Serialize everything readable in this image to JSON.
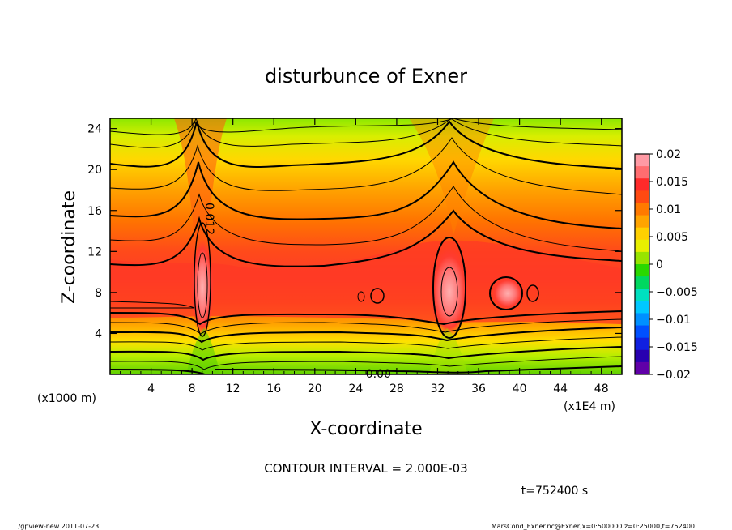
{
  "chart_data": {
    "type": "heatmap",
    "title": "disturbunce of Exner",
    "xlabel": "X-coordinate",
    "ylabel": "Z-coordinate",
    "x_unit_left": "(x1000 m)",
    "x_unit_right": "(x1E4 m)",
    "xlim": [
      0,
      50
    ],
    "ylim": [
      0,
      25
    ],
    "xticks": [
      4,
      8,
      12,
      16,
      20,
      24,
      28,
      32,
      36,
      40,
      44,
      48
    ],
    "yticks": [
      4,
      8,
      12,
      16,
      20,
      24
    ],
    "colorbar": {
      "levels": [
        0.02,
        0.015,
        0.01,
        0.005,
        0,
        -0.005,
        -0.01,
        -0.015,
        -0.02
      ],
      "labels": [
        "0.02",
        "0.015",
        "0.01",
        "0.005",
        "0",
        "−0.005",
        "−0.01",
        "−0.015",
        "−0.02"
      ],
      "range": [
        -0.02,
        0.02
      ]
    },
    "contour_labels": [
      "0.012",
      "−0.00"
    ],
    "contour_interval": "CONTOUR INTERVAL = 2.000E-03",
    "time_label": "t=752400 s",
    "peaks": [
      {
        "x": 9,
        "z": 8,
        "value": 0.019
      },
      {
        "x": 33,
        "z": 8,
        "value": 0.018
      },
      {
        "x": 38.5,
        "z": 8,
        "value": 0.015
      }
    ]
  },
  "footer": {
    "left": "./gpview-new   2011-07-23",
    "right": "MarsCond_Exner.nc@Exner,x=0:500000,z=0:25000,t=752400"
  },
  "palette": {
    "c1": "#ff8c94",
    "c2": "#ff3a2a",
    "c3": "#ff6e00",
    "c4": "#ffae00",
    "c5": "#e8e800",
    "c6": "#5fd800",
    "c7": "#00e0a0",
    "c8": "#00b0ff",
    "c9": "#0050ff",
    "c10": "#1000b0",
    "c11": "#7000a0"
  }
}
